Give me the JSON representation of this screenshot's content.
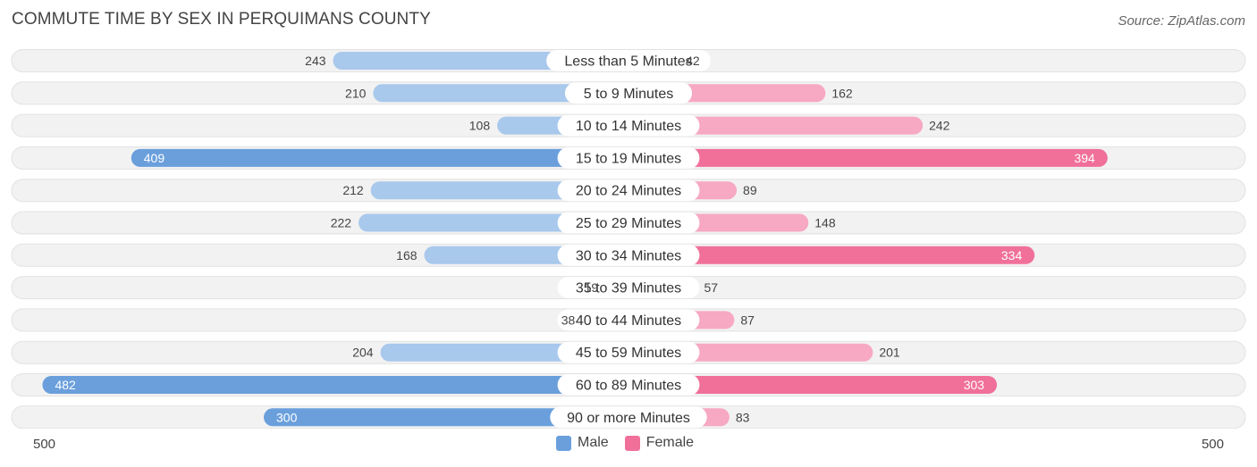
{
  "title": "COMMUTE TIME BY SEX IN PERQUIMANS COUNTY",
  "source": "Source: ZipAtlas.com",
  "axis": {
    "left_label": "500",
    "right_label": "500"
  },
  "legend": {
    "male": "Male",
    "female": "Female"
  },
  "colors": {
    "male_light": "#a8c8ec",
    "male_dark": "#6a9fdc",
    "female_light": "#f7a8c3",
    "female_dark": "#f0709a",
    "row_bg": "#f2f2f2",
    "row_border": "#e2e2e2"
  },
  "chart_data": {
    "type": "bar",
    "orientation": "horizontal-diverging",
    "title": "COMMUTE TIME BY SEX IN PERQUIMANS COUNTY",
    "categories": [
      "Less than 5 Minutes",
      "5 to 9 Minutes",
      "10 to 14 Minutes",
      "15 to 19 Minutes",
      "20 to 24 Minutes",
      "25 to 29 Minutes",
      "30 to 34 Minutes",
      "35 to 39 Minutes",
      "40 to 44 Minutes",
      "45 to 59 Minutes",
      "60 to 89 Minutes",
      "90 or more Minutes"
    ],
    "series": [
      {
        "name": "Male",
        "values": [
          243,
          210,
          108,
          409,
          212,
          222,
          168,
          19,
          38,
          204,
          482,
          300
        ]
      },
      {
        "name": "Female",
        "values": [
          42,
          162,
          242,
          394,
          89,
          148,
          334,
          57,
          87,
          201,
          303,
          83
        ]
      }
    ],
    "xlim": [
      -500,
      500
    ],
    "legend_position": "bottom-center"
  }
}
